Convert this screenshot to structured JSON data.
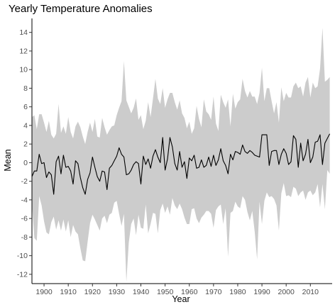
{
  "chart_data": {
    "type": "area",
    "title": "Yearly Temperature Anomalies",
    "xlabel": "Year",
    "ylabel": "Mean",
    "xlim": [
      1895,
      2019
    ],
    "ylim": [
      -13,
      15.5
    ],
    "xticks": [
      1900,
      1910,
      1920,
      1930,
      1940,
      1950,
      1960,
      1970,
      1980,
      1990,
      2000,
      2010
    ],
    "yticks": [
      -12,
      -10,
      -8,
      -6,
      -4,
      -2,
      0,
      2,
      4,
      6,
      8,
      10,
      12,
      14
    ],
    "grid": false,
    "legend": "none",
    "colors": {
      "band": "#cccccc",
      "line": "#000000"
    },
    "x": [
      1895,
      1896,
      1897,
      1898,
      1899,
      1900,
      1901,
      1902,
      1903,
      1904,
      1905,
      1906,
      1907,
      1908,
      1909,
      1910,
      1911,
      1912,
      1913,
      1914,
      1915,
      1916,
      1917,
      1918,
      1919,
      1920,
      1921,
      1922,
      1923,
      1924,
      1925,
      1926,
      1927,
      1928,
      1929,
      1930,
      1931,
      1932,
      1933,
      1934,
      1935,
      1936,
      1937,
      1938,
      1939,
      1940,
      1941,
      1942,
      1943,
      1944,
      1945,
      1946,
      1947,
      1948,
      1949,
      1950,
      1951,
      1952,
      1953,
      1954,
      1955,
      1956,
      1957,
      1958,
      1959,
      1960,
      1961,
      1962,
      1963,
      1964,
      1965,
      1966,
      1967,
      1968,
      1969,
      1970,
      1971,
      1972,
      1973,
      1974,
      1975,
      1976,
      1977,
      1978,
      1979,
      1980,
      1981,
      1982,
      1983,
      1984,
      1985,
      1986,
      1987,
      1988,
      1989,
      1990,
      1991,
      1992,
      1993,
      1994,
      1995,
      1996,
      1997,
      1998,
      1999,
      2000,
      2001,
      2002,
      2003,
      2004,
      2005,
      2006,
      2007,
      2008,
      2009,
      2010,
      2011,
      2012,
      2013,
      2014,
      2015,
      2016,
      2017,
      2018
    ],
    "series": [
      {
        "name": "",
        "role": "mean",
        "values": [
          -1.5,
          -0.9,
          -0.9,
          0.9,
          -0.1,
          0.0,
          -1.6,
          -1.0,
          -1.3,
          -3.4,
          0.1,
          0.7,
          -1.2,
          0.8,
          -0.5,
          -0.4,
          -0.9,
          -2.3,
          0.2,
          -0.1,
          -1.6,
          -2.7,
          -3.4,
          -1.8,
          -1.1,
          0.6,
          -0.5,
          -1.5,
          -2.0,
          -0.9,
          -1.0,
          -2.9,
          -0.6,
          -0.3,
          0.2,
          0.7,
          1.6,
          0.9,
          0.6,
          -1.3,
          -1.2,
          -0.8,
          -0.2,
          0.1,
          -0.1,
          -2.3,
          0.7,
          -0.2,
          0.4,
          -0.6,
          0.7,
          1.4,
          0.6,
          0.0,
          2.7,
          -0.8,
          0.4,
          2.7,
          1.7,
          -0.1,
          -0.8,
          1.2,
          -0.5,
          0.1,
          -1.7,
          0.5,
          0.2,
          0.8,
          -0.6,
          -0.5,
          0.3,
          -0.5,
          -0.3,
          0.6,
          -0.4,
          0.8,
          -0.3,
          0.3,
          1.5,
          0.2,
          -0.3,
          -1.2,
          0.9,
          0.3,
          1.2,
          1.1,
          0.9,
          1.9,
          1.2,
          1.0,
          1.3,
          1.1,
          0.8,
          0.7,
          0.6,
          3.0,
          3.0,
          3.0,
          -0.3,
          1.2,
          1.3,
          1.3,
          -0.2,
          0.9,
          1.5,
          1.0,
          -0.2,
          0.1,
          2.9,
          2.5,
          -0.5,
          2.1,
          0.2,
          0.9,
          2.5,
          0.0,
          0.6,
          2.2,
          2.3,
          3.0,
          -0.2,
          2.1,
          2.6,
          3.1
        ]
      },
      {
        "name": "",
        "role": "upper",
        "values": [
          4.9,
          5.1,
          3.6,
          5.2,
          5.2,
          4.3,
          3.3,
          4.5,
          3.0,
          2.6,
          3.1,
          6.3,
          3.2,
          3.9,
          3.1,
          4.9,
          3.3,
          2.6,
          3.9,
          4.4,
          3.8,
          2.8,
          2.0,
          3.3,
          4.3,
          3.3,
          4.7,
          2.8,
          2.7,
          4.8,
          3.8,
          3.0,
          3.5,
          3.9,
          4.0,
          5.1,
          5.9,
          6.6,
          10.9,
          6.7,
          6.0,
          5.3,
          5.9,
          6.9,
          4.6,
          5.1,
          3.6,
          4.5,
          6.5,
          4.9,
          6.9,
          9.0,
          6.9,
          6.3,
          8.0,
          5.9,
          6.8,
          7.5,
          7.5,
          6.5,
          5.7,
          6.7,
          5.3,
          4.8,
          3.7,
          4.4,
          3.1,
          3.7,
          6.1,
          4.7,
          3.8,
          6.8,
          5.5,
          5.2,
          4.6,
          7.1,
          4.2,
          3.4,
          7.3,
          6.5,
          5.9,
          6.8,
          3.9,
          7.4,
          5.8,
          6.5,
          6.8,
          9.0,
          7.7,
          7.0,
          7.7,
          7.1,
          7.1,
          6.3,
          7.5,
          10.2,
          6.6,
          8.0,
          8.0,
          6.6,
          5.3,
          6.5,
          4.3,
          8.1,
          6.6,
          7.5,
          7.0,
          7.0,
          8.2,
          8.6,
          8.0,
          8.2,
          7.1,
          8.6,
          9.2,
          7.0,
          8.6,
          8.0,
          8.2,
          10.1,
          14.5,
          8.7,
          8.9,
          9.2
        ]
      },
      {
        "name": "",
        "role": "lower",
        "values": [
          -4.4,
          -8.1,
          -8.4,
          -3.6,
          -4.6,
          -6.3,
          -7.5,
          -7.7,
          -6.4,
          -5.8,
          -7.2,
          -6.2,
          -7.3,
          -6.1,
          -7.4,
          -6.2,
          -8.0,
          -6.7,
          -7.4,
          -7.7,
          -9.2,
          -10.5,
          -10.6,
          -8.5,
          -6.5,
          -5.6,
          -6.1,
          -6.7,
          -7.3,
          -6.0,
          -5.7,
          -6.5,
          -5.6,
          -5.4,
          -4.3,
          -4.1,
          -5.5,
          -6.8,
          -5.5,
          -12.8,
          -8.6,
          -6.6,
          -6.0,
          -7.8,
          -5.6,
          -7.0,
          -7.1,
          -4.5,
          -7.6,
          -6.6,
          -5.4,
          -5.5,
          -7.6,
          -5.1,
          -4.4,
          -5.4,
          -4.7,
          -5.6,
          -3.8,
          -4.6,
          -5.0,
          -4.4,
          -5.0,
          -5.9,
          -6.6,
          -6.6,
          -5.0,
          -4.9,
          -6.0,
          -6.5,
          -5.9,
          -5.6,
          -5.2,
          -5.2,
          -5.5,
          -7.0,
          -5.1,
          -4.7,
          -4.5,
          -6.6,
          -4.9,
          -10.1,
          -5.4,
          -5.2,
          -4.2,
          -4.7,
          -4.9,
          -3.6,
          -4.0,
          -5.3,
          -6.2,
          -5.2,
          -7.4,
          -10.4,
          -4.2,
          -6.6,
          -4.1,
          -3.2,
          -3.7,
          -3.6,
          -3.9,
          -4.6,
          -7.3,
          -3.3,
          -2.2,
          -3.6,
          -3.5,
          -3.7,
          -2.6,
          -2.8,
          -3.6,
          -3.2,
          -3.0,
          -4.0,
          -3.2,
          -3.0,
          -3.5,
          -3.2,
          -2.3,
          -4.8,
          -2.3,
          -5.0,
          -0.8,
          -1.2
        ]
      }
    ]
  }
}
